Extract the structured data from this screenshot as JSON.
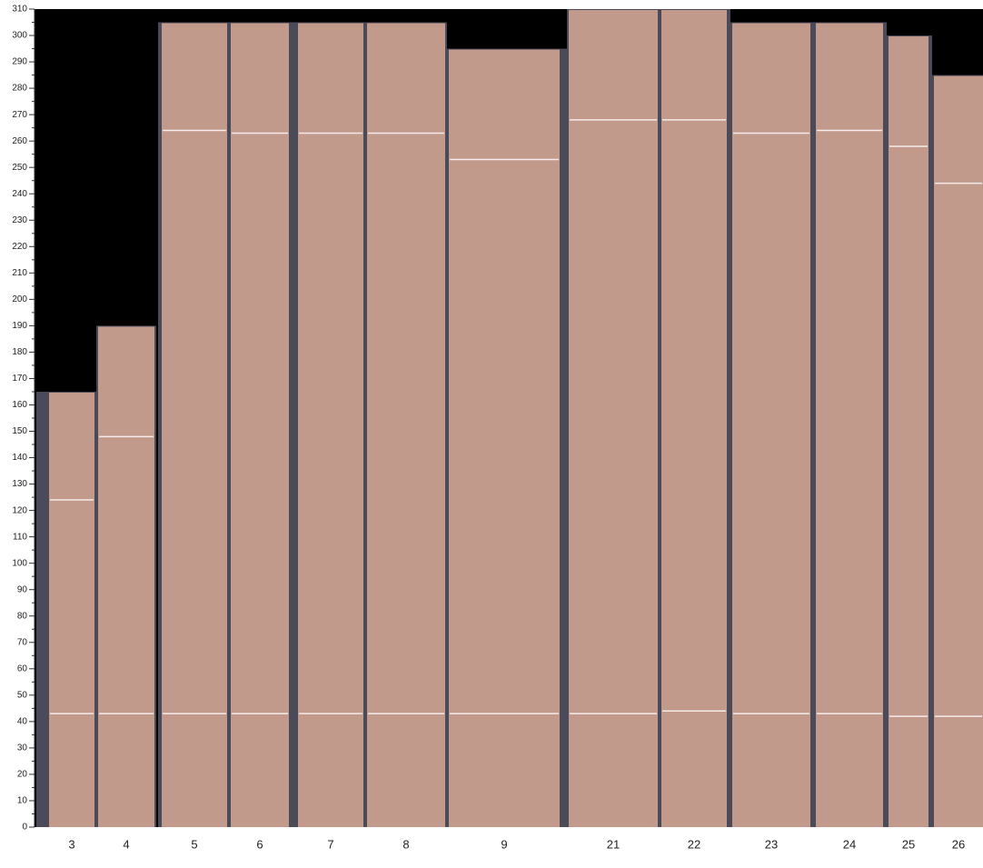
{
  "chart_data": {
    "type": "bar",
    "categories": [
      "3",
      "4",
      "5",
      "6",
      "7",
      "8",
      "9",
      "21",
      "22",
      "23",
      "24",
      "25",
      "26"
    ],
    "values": [
      165,
      190,
      305,
      305,
      305,
      305,
      295,
      310,
      310,
      305,
      305,
      300,
      285
    ],
    "cut_lines": [
      [
        43,
        124
      ],
      [
        43,
        148
      ],
      [
        43,
        264
      ],
      [
        43,
        263
      ],
      [
        43,
        263
      ],
      [
        43,
        263
      ],
      [
        43,
        253
      ],
      [
        43,
        268
      ],
      [
        44,
        268
      ],
      [
        43,
        263
      ],
      [
        43,
        264
      ],
      [
        42,
        258
      ],
      [
        42,
        244
      ]
    ],
    "color": "#4b4a58",
    "wood_color": "#c19a8c",
    "ylim": [
      0,
      310
    ],
    "yticks": [
      0,
      10,
      20,
      30,
      40,
      50,
      60,
      70,
      80,
      90,
      100,
      110,
      120,
      130,
      140,
      150,
      160,
      170,
      180,
      190,
      200,
      210,
      220,
      230,
      240,
      250,
      260,
      270,
      280,
      290,
      300,
      310
    ]
  }
}
